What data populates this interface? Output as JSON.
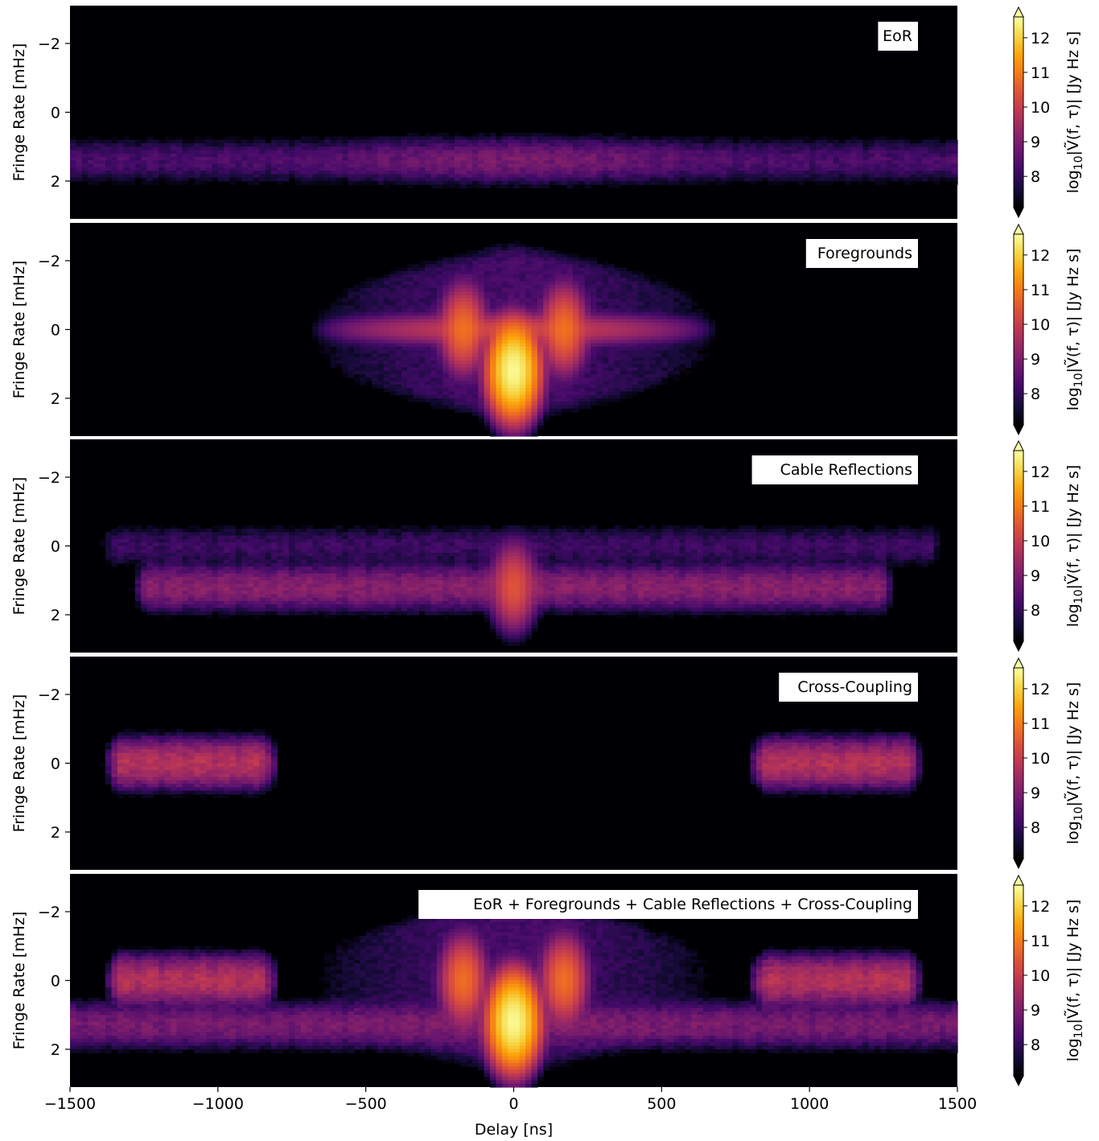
{
  "chart_data": {
    "type": "heatmap",
    "xlabel": "Delay [ns]",
    "ylabel": "Fringe Rate [mHz]",
    "xlim": [
      -1500,
      1500
    ],
    "ylim": [
      3.1,
      -3.1
    ],
    "xticks": [
      "−1500",
      "−1000",
      "−500",
      "0",
      "500",
      "1000",
      "1500"
    ],
    "xtick_values": [
      -1500,
      -1000,
      -500,
      0,
      500,
      1000,
      1500
    ],
    "yticks": [
      "−2",
      "0",
      "2"
    ],
    "ytick_values": [
      -2,
      0,
      2
    ],
    "colorbar": {
      "label": "log10|Ṽ(f, τ)| [Jy Hz s]",
      "label_parts": {
        "log": "log",
        "sub": "10",
        "rest": "|Ṽ(f, τ)| [Jy Hz s]"
      },
      "range": [
        7.1,
        12.6
      ],
      "ticks": [
        "8",
        "9",
        "10",
        "11",
        "12"
      ],
      "tick_values": [
        8,
        9,
        10,
        11,
        12
      ],
      "colormap": "inferno",
      "extend": "both"
    },
    "panels": [
      {
        "label": "EoR",
        "components": [
          {
            "kind": "band",
            "fringe_rate": 1.4,
            "delay_range": [
              -1500,
              1500
            ],
            "level": 8.4,
            "center_level": 8.9
          }
        ]
      },
      {
        "label": "Foregrounds",
        "components": [
          {
            "kind": "peak",
            "delay": 0,
            "fringe_rate": 1.2,
            "level": 12.5
          },
          {
            "kind": "wedge",
            "delay_range": [
              -700,
              700
            ],
            "fringe_rate_range": [
              -2.0,
              2.2
            ],
            "level": 8.5
          },
          {
            "kind": "arm",
            "fringe_rate": 0,
            "delay_range": [
              -700,
              700
            ],
            "level": 10.2
          },
          {
            "kind": "peak",
            "delay": -170,
            "fringe_rate": 0,
            "level": 10.8
          },
          {
            "kind": "peak",
            "delay": 170,
            "fringe_rate": 0,
            "level": 10.8
          }
        ]
      },
      {
        "label": "Cable Reflections",
        "components": [
          {
            "kind": "band",
            "fringe_rate": 1.2,
            "delay_range": [
              -1230,
              1230
            ],
            "level": 9.2
          },
          {
            "kind": "band",
            "fringe_rate": 0,
            "delay_range": [
              -1350,
              1400
            ],
            "level": 8.2
          },
          {
            "kind": "peak",
            "delay": 0,
            "fringe_rate": 1.2,
            "level": 10.4
          }
        ]
      },
      {
        "label": "Cross-Coupling",
        "components": [
          {
            "kind": "band",
            "fringe_rate": 0,
            "delay_range": [
              -1320,
              -860
            ],
            "level": 9.8
          },
          {
            "kind": "band",
            "fringe_rate": 0,
            "delay_range": [
              860,
              1320
            ],
            "level": 9.8
          }
        ]
      },
      {
        "label": "EoR + Foregrounds + Cable Reflections + Cross-Coupling",
        "components": [
          {
            "kind": "band",
            "fringe_rate": 1.3,
            "delay_range": [
              -1500,
              1500
            ],
            "level": 9.0
          },
          {
            "kind": "band",
            "fringe_rate": 0,
            "delay_range": [
              -1320,
              -860
            ],
            "level": 9.8
          },
          {
            "kind": "band",
            "fringe_rate": 0,
            "delay_range": [
              860,
              1320
            ],
            "level": 9.8
          },
          {
            "kind": "peak",
            "delay": 0,
            "fringe_rate": 1.2,
            "level": 12.5
          },
          {
            "kind": "peak",
            "delay": -170,
            "fringe_rate": 0,
            "level": 10.8
          },
          {
            "kind": "peak",
            "delay": 170,
            "fringe_rate": 0,
            "level": 10.8
          },
          {
            "kind": "wedge",
            "delay_range": [
              -700,
              700
            ],
            "fringe_rate_range": [
              -2.0,
              2.2
            ],
            "level": 8.5
          }
        ]
      }
    ]
  }
}
